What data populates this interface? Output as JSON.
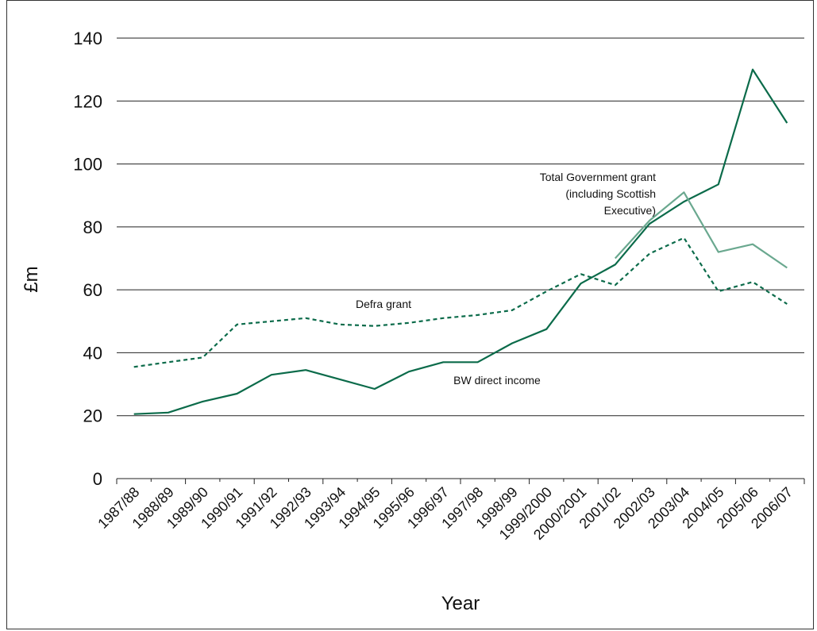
{
  "chart_data": {
    "type": "line",
    "xlabel": "Year",
    "ylabel": "£m",
    "ylim": [
      0,
      140
    ],
    "yticks": [
      0,
      20,
      40,
      60,
      80,
      100,
      120,
      140
    ],
    "grid": true,
    "categories": [
      "1987/88",
      "1988/89",
      "1989/90",
      "1990/91",
      "1991/92",
      "1992/93",
      "1993/94",
      "1994/95",
      "1995/96",
      "1996/97",
      "1997/98",
      "1998/99",
      "1999/2000",
      "2000/2001",
      "2001/02",
      "2002/03",
      "2003/04",
      "2004/05",
      "2005/06",
      "2006/07"
    ],
    "series": [
      {
        "name": "BW direct income",
        "style": "solid",
        "color": "#0b6b4a",
        "values": [
          20.5,
          21,
          24.5,
          27,
          33,
          34.5,
          31.5,
          28.5,
          34,
          37,
          37,
          43,
          47.5,
          62,
          68,
          81,
          88,
          93.5,
          130,
          113
        ]
      },
      {
        "name": "Defra grant",
        "style": "dashed",
        "color": "#0b6b4a",
        "values": [
          35.5,
          37,
          38.5,
          49,
          50,
          51,
          49,
          48.5,
          49.5,
          51,
          52,
          53.5,
          59.5,
          65,
          61.5,
          71.5,
          76.5,
          59.5,
          62.5,
          55.5
        ]
      },
      {
        "name": "Total Government grant (including Scottish Executive)",
        "style": "solid",
        "color": "#6aa88f",
        "values": [
          null,
          null,
          null,
          null,
          null,
          null,
          null,
          null,
          null,
          null,
          null,
          null,
          null,
          null,
          70,
          82,
          91,
          72,
          74.5,
          67
        ]
      }
    ],
    "annotations": [
      {
        "text": "Defra grant"
      },
      {
        "text": "BW direct income"
      },
      {
        "lines": [
          "Total Government grant",
          "(including Scottish",
          "Executive)"
        ]
      }
    ]
  }
}
